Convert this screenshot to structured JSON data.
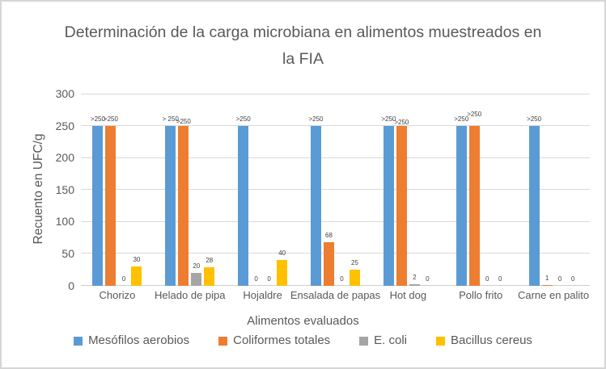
{
  "figure": {
    "background": "#FFFFFF",
    "border_color": "#D6D6D6"
  },
  "chart_data": {
    "type": "bar",
    "title": "Determinación de la carga microbiana en alimentos muestreados en la FIA",
    "xlabel": "Alimentos evaluados",
    "ylabel": "Recuento en UFC/g",
    "ylim": [
      0,
      300
    ],
    "yticks": [
      0,
      50,
      100,
      150,
      200,
      250,
      300
    ],
    "grid": true,
    "gridline_color": "#D9D9D9",
    "text_color": "#595959",
    "data_label_color": "#404040",
    "legend_position": "bottom",
    "categories": [
      "Chorizo",
      "Helado de pipa",
      "Hojaldre",
      "Ensalada de papas",
      "Hot dog",
      "Pollo frito",
      "Carne en palito"
    ],
    "series": [
      {
        "name": "Mesófilos aerobios",
        "color": "#5B9BD5",
        "values": [
          250,
          250,
          250,
          250,
          250,
          250,
          250
        ],
        "data_labels": [
          ">250",
          "> 250",
          ">250",
          ">250",
          ">250",
          ">250",
          ">250"
        ],
        "label_dy": [
          0,
          0,
          0,
          0,
          0,
          0,
          0
        ]
      },
      {
        "name": "Coliformes totales",
        "color": "#ED7D31",
        "values": [
          250,
          250,
          0,
          68,
          250,
          250,
          1
        ],
        "data_labels": [
          ">250",
          ">250",
          "0",
          "68",
          ">250",
          ">250",
          "1"
        ],
        "label_dy": [
          0,
          3,
          0,
          0,
          4,
          -6,
          0
        ]
      },
      {
        "name": "E. coli",
        "color": "#A5A5A5",
        "values": [
          0,
          20,
          0,
          0,
          2,
          0,
          0
        ],
        "data_labels": [
          "0",
          "20",
          "0",
          "0",
          "2",
          "0",
          "0"
        ],
        "label_dy": [
          0,
          0,
          0,
          0,
          0,
          0,
          0
        ]
      },
      {
        "name": "Bacillus cereus",
        "color": "#FFC000",
        "values": [
          30,
          28,
          40,
          25,
          0,
          0,
          0
        ],
        "data_labels": [
          "30",
          "28",
          "40",
          "25",
          "0",
          "0",
          "0"
        ],
        "label_dy": [
          0,
          0,
          0,
          0,
          0,
          0,
          0
        ]
      }
    ]
  }
}
